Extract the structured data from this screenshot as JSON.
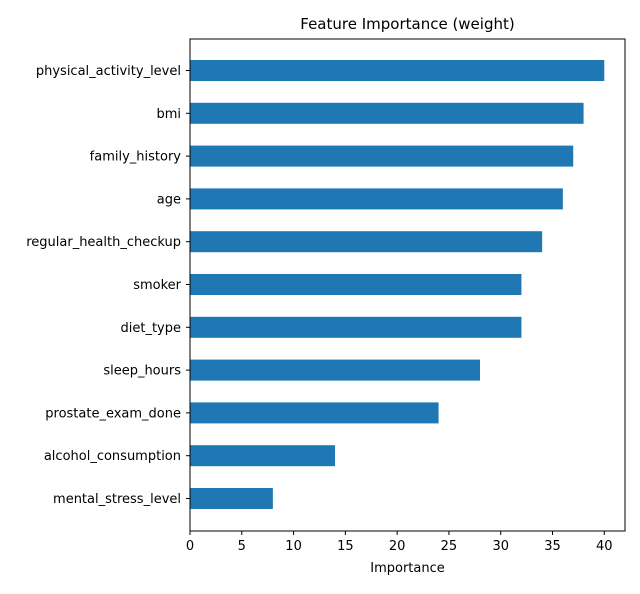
{
  "chart_data": {
    "type": "bar",
    "orientation": "horizontal",
    "title": "Feature Importance (weight)",
    "xlabel": "Importance",
    "ylabel": "",
    "xlim": [
      0,
      42
    ],
    "xticks": [
      0,
      5,
      10,
      15,
      20,
      25,
      30,
      35,
      40
    ],
    "grid": false,
    "bar_color": "#1f77b4",
    "categories": [
      "physical_activity_level",
      "bmi",
      "family_history",
      "age",
      "regular_health_checkup",
      "smoker",
      "diet_type",
      "sleep_hours",
      "prostate_exam_done",
      "alcohol_consumption",
      "mental_stress_level"
    ],
    "values": [
      40,
      38,
      37,
      36,
      34,
      32,
      32,
      28,
      24,
      14,
      8
    ]
  }
}
